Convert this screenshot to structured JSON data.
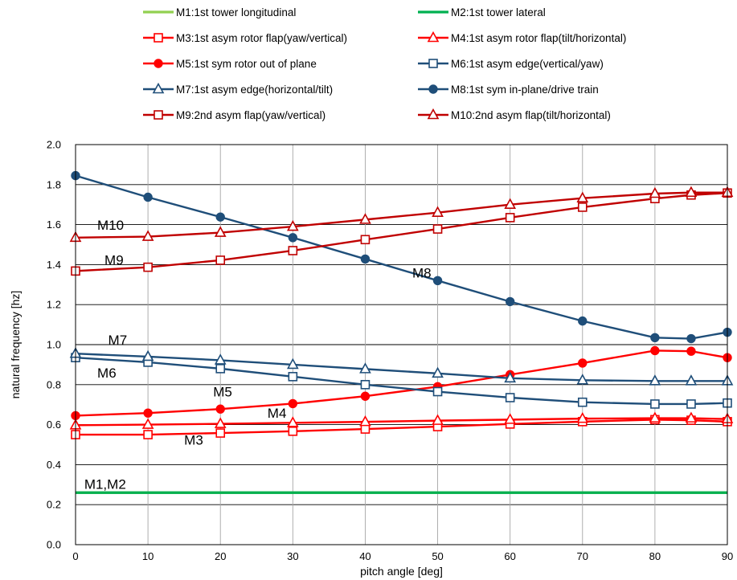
{
  "chart_data": {
    "type": "line",
    "xlabel": "pitch angle [deg]",
    "ylabel": "natural frequency [hz]",
    "xlim": [
      0,
      90
    ],
    "ylim": [
      0,
      2.0
    ],
    "xticks": [
      0,
      10,
      20,
      30,
      40,
      50,
      60,
      70,
      80,
      90
    ],
    "yticks": [
      0.0,
      0.2,
      0.4,
      0.6,
      0.8,
      1.0,
      1.2,
      1.4,
      1.6,
      1.8,
      2.0
    ],
    "ytick_labels": [
      "0.0",
      "0.2",
      "0.4",
      "0.6",
      "0.8",
      "1.0",
      "1.2",
      "1.4",
      "1.6",
      "1.8",
      "2.0"
    ],
    "grid": true,
    "legend_position": "top",
    "series": [
      {
        "name": "M1:1st tower longitudinal",
        "color": "#92d050",
        "marker": "none",
        "x": [
          0,
          90
        ],
        "y": [
          0.26,
          0.26
        ]
      },
      {
        "name": "M2:1st tower lateral",
        "color": "#00b050",
        "marker": "none",
        "x": [
          0,
          90
        ],
        "y": [
          0.26,
          0.26
        ]
      },
      {
        "name": "M3:1st asym rotor flap(yaw/vertical)",
        "color": "#ff0000",
        "marker": "square",
        "x": [
          0,
          10,
          20,
          30,
          40,
          50,
          60,
          70,
          80,
          85,
          90
        ],
        "y": [
          0.55,
          0.55,
          0.558,
          0.567,
          0.578,
          0.59,
          0.603,
          0.615,
          0.625,
          0.622,
          0.615
        ]
      },
      {
        "name": "M4:1st asym rotor flap(tilt/horizontal)",
        "color": "#ff0000",
        "marker": "triangle",
        "x": [
          0,
          10,
          20,
          30,
          40,
          50,
          60,
          70,
          80,
          85,
          90
        ],
        "y": [
          0.597,
          0.6,
          0.604,
          0.609,
          0.614,
          0.62,
          0.625,
          0.63,
          0.632,
          0.632,
          0.628
        ]
      },
      {
        "name": "M5:1st sym rotor out of plane",
        "color": "#ff0000",
        "marker": "circle",
        "x": [
          0,
          10,
          20,
          30,
          40,
          50,
          60,
          70,
          80,
          85,
          90
        ],
        "y": [
          0.645,
          0.658,
          0.678,
          0.705,
          0.742,
          0.79,
          0.85,
          0.908,
          0.97,
          0.967,
          0.935
        ]
      },
      {
        "name": "M6:1st asym edge(vertical/yaw)",
        "color": "#1f4e79",
        "marker": "square",
        "x": [
          0,
          10,
          20,
          30,
          40,
          50,
          60,
          70,
          80,
          85,
          90
        ],
        "y": [
          0.935,
          0.912,
          0.88,
          0.84,
          0.8,
          0.765,
          0.735,
          0.712,
          0.703,
          0.703,
          0.708
        ]
      },
      {
        "name": "M7:1st asym edge(horizontal/tilt)",
        "color": "#1f4e79",
        "marker": "triangle",
        "x": [
          0,
          10,
          20,
          30,
          40,
          50,
          60,
          70,
          80,
          85,
          90
        ],
        "y": [
          0.955,
          0.94,
          0.922,
          0.9,
          0.878,
          0.856,
          0.832,
          0.822,
          0.818,
          0.818,
          0.818
        ]
      },
      {
        "name": "M8:1st sym in-plane/drive train",
        "color": "#1f4e79",
        "marker": "circle",
        "x": [
          0,
          10,
          20,
          30,
          40,
          50,
          60,
          70,
          80,
          85,
          90
        ],
        "y": [
          1.845,
          1.737,
          1.638,
          1.535,
          1.428,
          1.32,
          1.215,
          1.118,
          1.035,
          1.03,
          1.062
        ]
      },
      {
        "name": "M9:2nd asym flap(yaw/vertical)",
        "color": "#c00000",
        "marker": "square",
        "x": [
          0,
          10,
          20,
          30,
          40,
          50,
          60,
          70,
          80,
          85,
          90
        ],
        "y": [
          1.368,
          1.387,
          1.422,
          1.47,
          1.525,
          1.578,
          1.635,
          1.687,
          1.73,
          1.748,
          1.758
        ]
      },
      {
        "name": "M10:2nd asym flap(tilt/horizontal)",
        "color": "#c00000",
        "marker": "triangle",
        "x": [
          0,
          10,
          20,
          30,
          40,
          50,
          60,
          70,
          80,
          85,
          90
        ],
        "y": [
          1.535,
          1.54,
          1.56,
          1.59,
          1.625,
          1.66,
          1.7,
          1.732,
          1.755,
          1.76,
          1.76
        ]
      }
    ],
    "annotations": [
      {
        "text": "M10",
        "x": 3,
        "y": 1.575
      },
      {
        "text": "M9",
        "x": 4,
        "y": 1.4
      },
      {
        "text": "M8",
        "x": 46.5,
        "y": 1.335
      },
      {
        "text": "M7",
        "x": 4.5,
        "y": 1.0
      },
      {
        "text": "M6",
        "x": 3,
        "y": 0.835
      },
      {
        "text": "M5",
        "x": 19,
        "y": 0.74
      },
      {
        "text": "M4",
        "x": 26.5,
        "y": 0.635
      },
      {
        "text": "M3",
        "x": 15,
        "y": 0.5
      },
      {
        "text": "M1,M2",
        "x": 1.2,
        "y": 0.28
      }
    ]
  }
}
